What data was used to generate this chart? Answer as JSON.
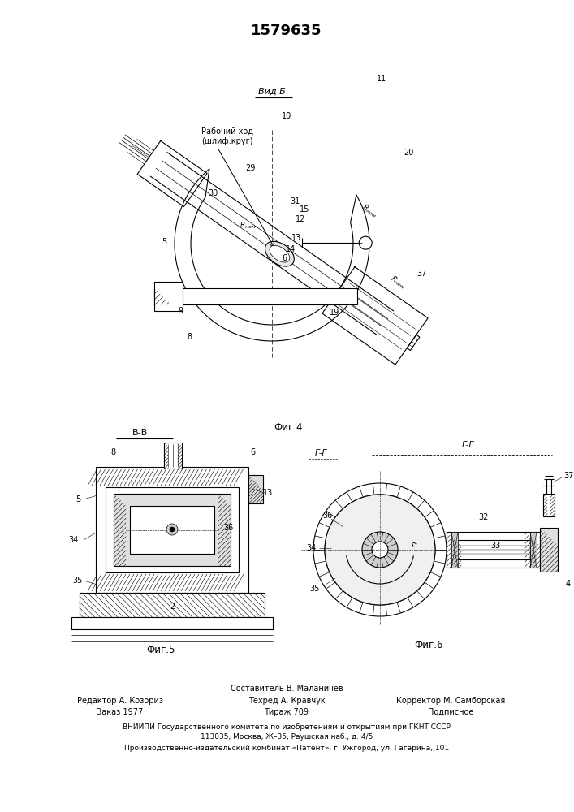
{
  "patent_number": "1579635",
  "background_color": "#ffffff",
  "fig4_caption": "Фиг.4",
  "fig5_caption": "Фиг.5",
  "fig6_caption": "Фиг.6",
  "vid_b_label": "Вид Б",
  "section_bb": "В-В",
  "section_gg": "Г-Г",
  "footer_sestavitel": "Составитель В. Маланичев",
  "footer_row2": [
    "Редактор А. Козориз",
    "Техред А. Кравчук",
    "Корректор М. Самборская"
  ],
  "footer_row3": [
    "Заказ 1977",
    "Тираж 709",
    "Подписное"
  ],
  "footer_vniipи": "ВНИИПИ Государственного комитета по изобретениям и открытиям при ГКНТ СССР",
  "footer_addr1": "113035, Москва, Ж–35, Раушская наб., д. 4/5",
  "footer_addr2": "Производственно-издательский комбинат «Патент», г. Ужгород, ул. Гагарина, 101"
}
